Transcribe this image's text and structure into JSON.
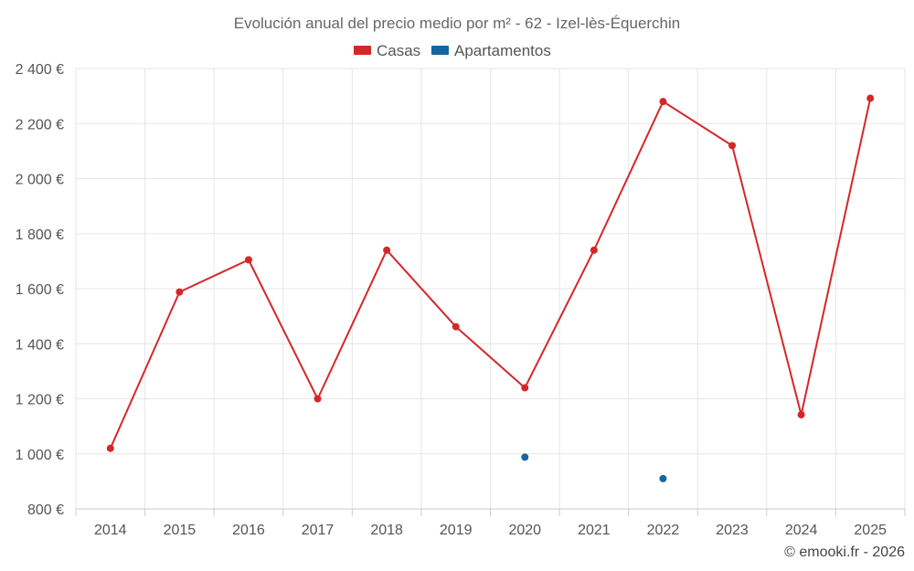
{
  "chart_data": {
    "type": "line",
    "title": "Evolución anual del precio medio por m² - 62 - Izel-lès-Équerchin",
    "categories": [
      "2014",
      "2015",
      "2016",
      "2017",
      "2018",
      "2019",
      "2020",
      "2021",
      "2022",
      "2023",
      "2024",
      "2025"
    ],
    "ylim": [
      800,
      2400
    ],
    "yticks": [
      800,
      1000,
      1200,
      1400,
      1600,
      1800,
      2000,
      2200,
      2400
    ],
    "ytick_labels": [
      "800 €",
      "1 000 €",
      "1 200 €",
      "1 400 €",
      "1 600 €",
      "1 800 €",
      "2 000 €",
      "2 200 €",
      "2 400 €"
    ],
    "grid": true,
    "legend_position": "top-center",
    "series": [
      {
        "name": "Casas",
        "color": "#d62728",
        "values": [
          1020,
          1588,
          1705,
          1200,
          1740,
          1462,
          1240,
          1740,
          2280,
          2120,
          1142,
          2292
        ]
      },
      {
        "name": "Apartamentos",
        "color": "#1565a0",
        "values": [
          null,
          null,
          null,
          null,
          null,
          null,
          988,
          null,
          910,
          null,
          null,
          null
        ]
      }
    ]
  },
  "credit": "© emooki.fr - 2026"
}
